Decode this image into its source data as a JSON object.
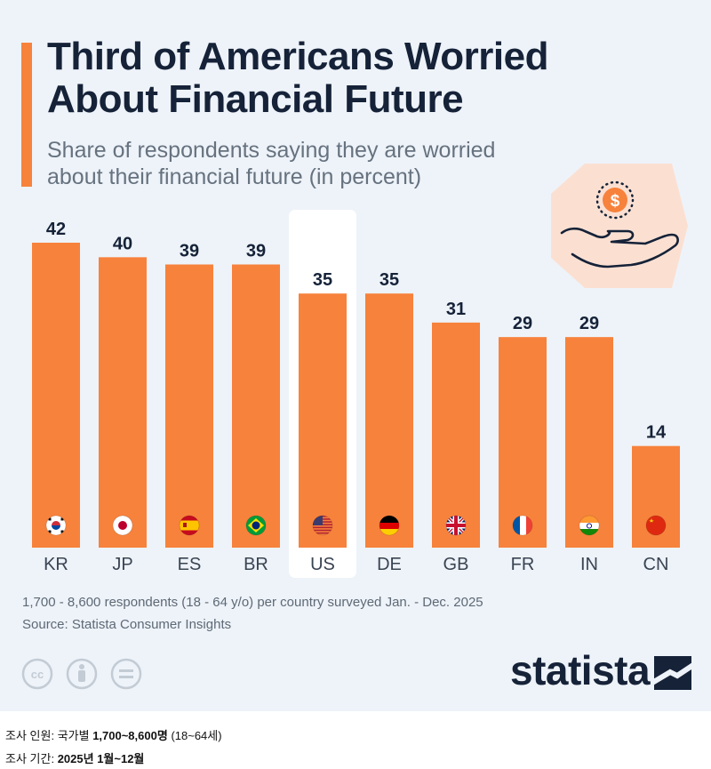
{
  "header": {
    "title_line1": "Third of Americans Worried",
    "title_line2": "About Financial Future",
    "subtitle_line1": "Share of respondents saying they are worried",
    "subtitle_line2": "about their financial future (in percent)"
  },
  "chart_data": {
    "type": "bar",
    "title": "Third of Americans Worried About Financial Future",
    "subtitle": "Share of respondents saying they are worried about their financial future (in percent)",
    "categories": [
      "KR",
      "JP",
      "ES",
      "BR",
      "US",
      "DE",
      "GB",
      "FR",
      "IN",
      "CN"
    ],
    "values": [
      42,
      40,
      39,
      39,
      35,
      35,
      31,
      29,
      29,
      14
    ],
    "highlight": "US",
    "xlabel": "",
    "ylabel": "",
    "ylim": [
      0,
      42
    ],
    "grid": false,
    "bar_color": "#f7823c"
  },
  "footer": {
    "note": "1,700 - 8,600 respondents (18 - 64 y/o) per country surveyed Jan. - Dec. 2025",
    "source": "Source: Statista Consumer Insights",
    "brand": "statista"
  },
  "korean_notes": {
    "line1_label": "조사 인원: 국가별",
    "line1_value": "1,700~8,600명",
    "line1_suffix": "(18~64세)",
    "line2_label": "조사 기간:",
    "line2_value": "2025년 1월~12월"
  },
  "colors": {
    "background": "#eef3f9",
    "bar": "#f7823c",
    "title": "#152238",
    "muted": "#66727f"
  },
  "icons": {
    "illustration": "hand-holding-dollar-icon"
  }
}
